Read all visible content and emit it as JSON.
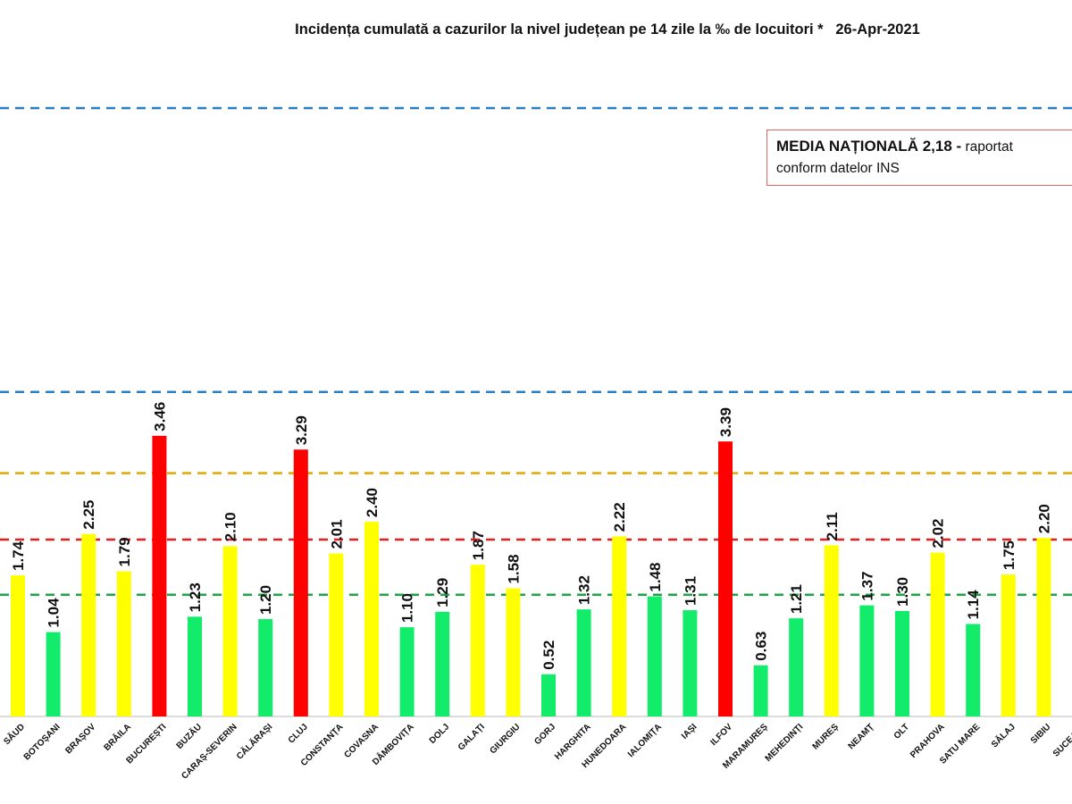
{
  "chart_data": {
    "type": "bar",
    "title": "Incidența cumulată a cazurilor la nivel județean pe 14 zile la ‰ de locuitori *   26-Apr-2021",
    "xlabel": "",
    "ylabel": "",
    "ylim": [
      0,
      8.5
    ],
    "grid": false,
    "categories": [
      "SĂUD",
      "BOTOȘANI",
      "BRAȘOV",
      "BRĂILA",
      "BUCUREȘTI",
      "BUZĂU",
      "CARAȘ-SEVERIN",
      "CĂLĂRAȘI",
      "CLUJ",
      "CONSTANȚA",
      "COVASNA",
      "DÂMBOVIȚA",
      "DOLJ",
      "GALAȚI",
      "GIURGIU",
      "GORJ",
      "HARGHITA",
      "HUNEDOARA",
      "IALOMIȚA",
      "IAȘI",
      "ILFOV",
      "MARAMUREȘ",
      "MEHEDINȚI",
      "MUREȘ",
      "NEAMȚ",
      "OLT",
      "PRAHOVA",
      "SATU MARE",
      "SĂLAJ",
      "SIBIU",
      "SUCEAVA"
    ],
    "values": [
      1.74,
      1.04,
      2.25,
      1.79,
      3.46,
      1.23,
      2.1,
      1.2,
      3.29,
      2.01,
      2.4,
      1.1,
      1.29,
      1.87,
      1.58,
      0.52,
      1.32,
      2.22,
      1.48,
      1.31,
      3.39,
      0.63,
      1.21,
      2.11,
      1.37,
      1.3,
      2.02,
      1.14,
      1.75,
      2.2,
      null
    ],
    "value_labels": [
      "1.74",
      "1.04",
      "2.25",
      "1.79",
      "3.46",
      "1.23",
      "2.10",
      "1.20",
      "3.29",
      "2.01",
      "2.40",
      "1.10",
      "1.29",
      "1.87",
      "1.58",
      "0.52",
      "1.32",
      "2.22",
      "1.48",
      "1.31",
      "3.39",
      "0.63",
      "1.21",
      "2.11",
      "1.37",
      "1.30",
      "2.02",
      "1.14",
      "1.75",
      "2.20",
      ""
    ],
    "thresholds": [
      {
        "value": 1.5,
        "color": "#1fa44a"
      },
      {
        "value": 2.18,
        "color": "#e81c1c"
      },
      {
        "value": 3.0,
        "color": "#e0a800"
      },
      {
        "value": 4.0,
        "color": "#2a7fc0"
      },
      {
        "value": 7.5,
        "color": "#2a7fc0"
      }
    ],
    "color_rules": {
      "low": "#12ec6a",
      "mid": "#ffff00",
      "high": "#ff0000"
    },
    "annotation": {
      "bold": "MEDIA NAȚIONALĂ  2,18 -",
      "rest": " raportat",
      "line2": "conform datelor INS"
    }
  }
}
